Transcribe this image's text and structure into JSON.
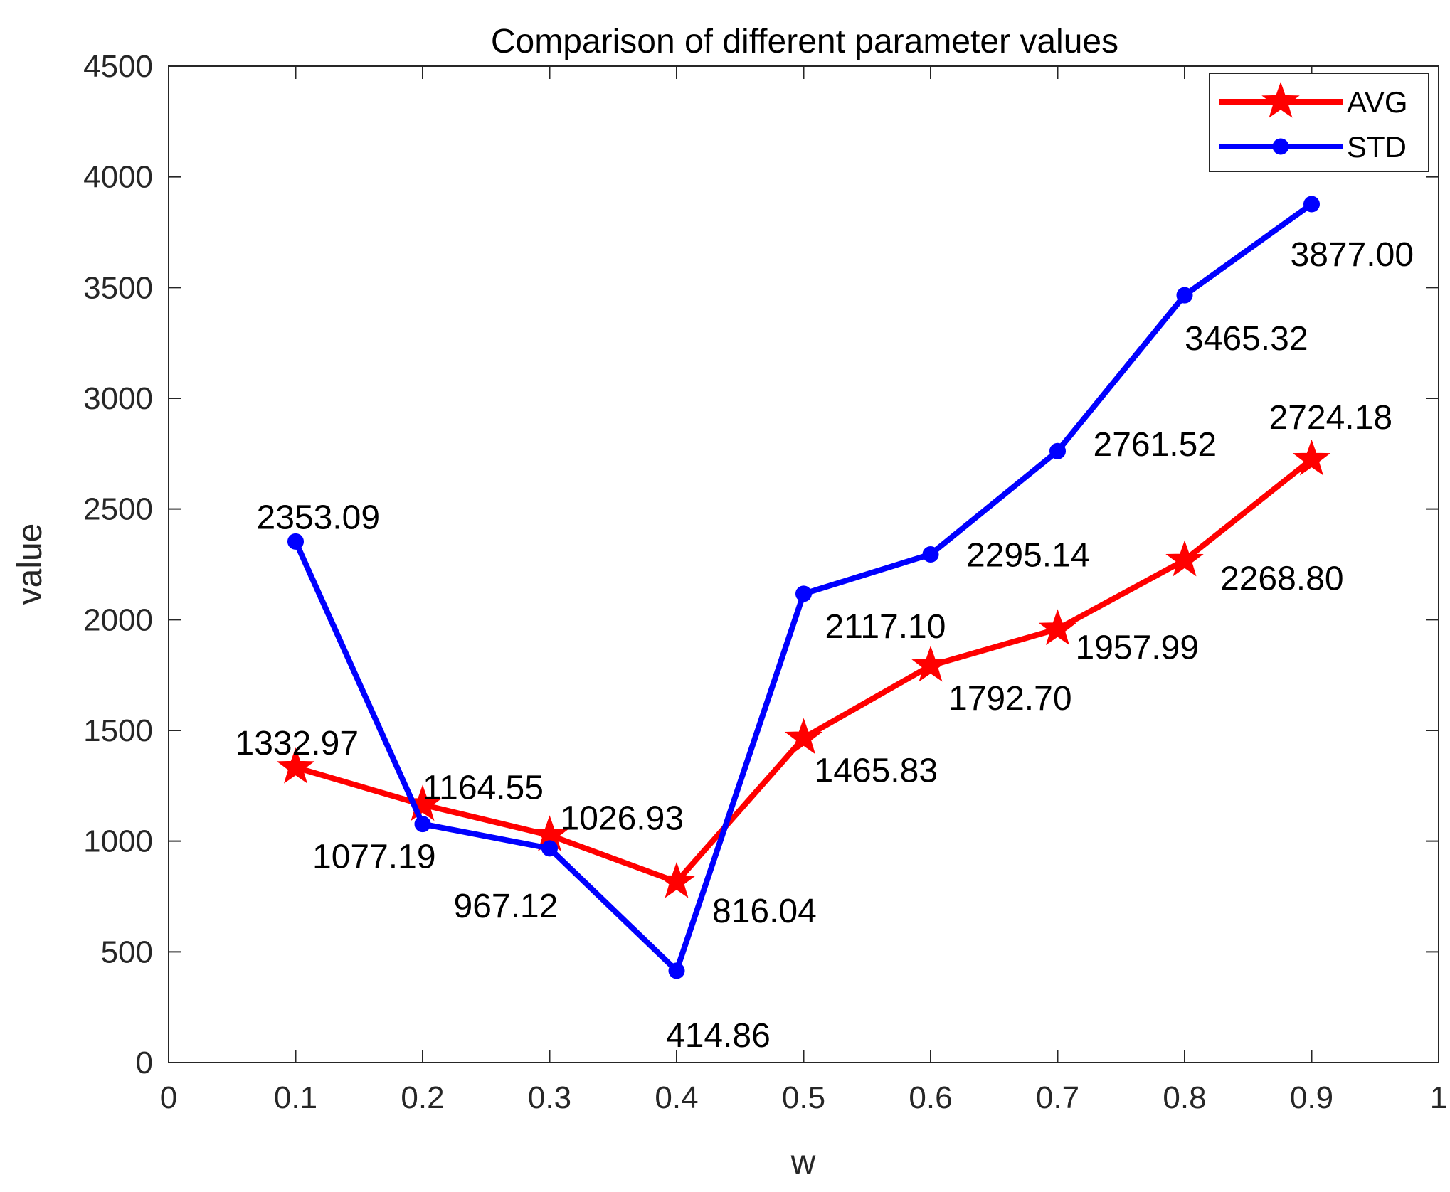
{
  "chart_data": {
    "type": "line",
    "title": "Comparison of different parameter values",
    "xlabel": "w",
    "ylabel": "value",
    "xlim": [
      0,
      1
    ],
    "ylim": [
      0,
      4500
    ],
    "xticks": [
      0,
      0.1,
      0.2,
      0.3,
      0.4,
      0.5,
      0.6,
      0.7,
      0.8,
      0.9,
      1
    ],
    "xtick_labels": [
      "0",
      "0.1",
      "0.2",
      "0.3",
      "0.4",
      "0.5",
      "0.6",
      "0.7",
      "0.8",
      "0.9",
      "1"
    ],
    "yticks": [
      0,
      500,
      1000,
      1500,
      2000,
      2500,
      3000,
      3500,
      4000,
      4500
    ],
    "ytick_labels": [
      "0",
      "500",
      "1000",
      "1500",
      "2000",
      "2500",
      "3000",
      "3500",
      "4000",
      "4500"
    ],
    "x": [
      0.1,
      0.2,
      0.3,
      0.4,
      0.5,
      0.6,
      0.7,
      0.8,
      0.9
    ],
    "legend_position": "top-right",
    "grid": false,
    "series": [
      {
        "name": "AVG",
        "color": "#ff0000",
        "marker": "star",
        "values": [
          1332.97,
          1164.55,
          1026.93,
          816.04,
          1465.83,
          1792.7,
          1957.99,
          2268.8,
          2724.18
        ],
        "labels": [
          "1332.97",
          "1164.55",
          "1026.93",
          "816.04",
          "1465.83",
          "1792.70",
          "1957.99",
          "2268.80",
          "2724.18"
        ]
      },
      {
        "name": "STD",
        "color": "#0000ff",
        "marker": "circle",
        "values": [
          2353.09,
          1077.19,
          967.12,
          414.86,
          2117.1,
          2295.14,
          2761.52,
          3465.32,
          3877.0
        ],
        "labels": [
          "2353.09",
          "1077.19",
          "967.12",
          "414.86",
          "2117.10",
          "2295.14",
          "2761.52",
          "3465.32",
          "3877.00"
        ]
      }
    ]
  }
}
